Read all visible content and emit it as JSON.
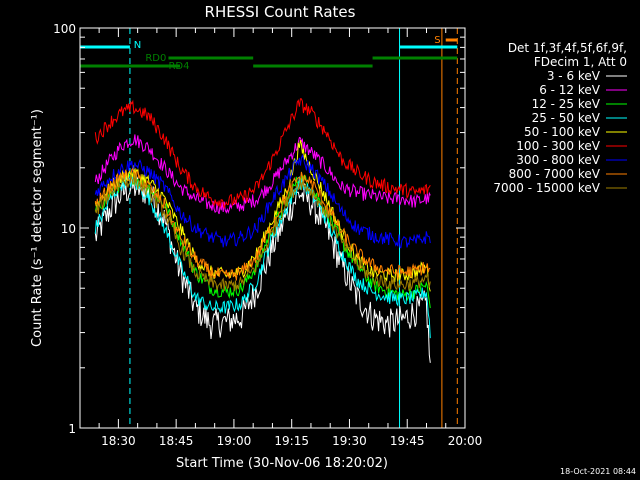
{
  "chart_data": {
    "type": "line",
    "title": "RHESSI Count Rates",
    "xlabel": "Start Time (30-Nov-06 18:20:02)",
    "ylabel": "Count Rate (s⁻¹ detector segment⁻¹)",
    "y_scale": "log",
    "ylim": [
      1,
      100
    ],
    "xlim": [
      "18:20:02",
      "20:00:00"
    ],
    "x_ticks": [
      "18:30",
      "18:45",
      "19:00",
      "19:15",
      "19:30",
      "19:45",
      "20:00"
    ],
    "y_ticks": [
      "1",
      "10",
      "100"
    ],
    "grid": false,
    "legend_header": [
      "Det 1f,3f,4f,5f,6f,9f,",
      "FDecim 1, Att 0"
    ],
    "legend_position": "right",
    "timestamp": "18-Oct-2021 08:44",
    "x": [
      "18:24",
      "18:28",
      "18:31",
      "18:34",
      "18:38",
      "18:42",
      "18:46",
      "18:50",
      "18:54",
      "18:58",
      "19:02",
      "19:06",
      "19:10",
      "19:14",
      "19:17",
      "19:20",
      "19:24",
      "19:28",
      "19:32",
      "19:36",
      "19:40",
      "19:44",
      "19:47",
      "19:50",
      "19:51"
    ],
    "series": [
      {
        "name": "3 - 6 keV",
        "color": "#ffffff",
        "values": [
          9,
          12.5,
          15,
          16,
          15,
          11,
          6,
          4,
          3.3,
          3.4,
          3.6,
          5,
          8,
          12,
          15,
          13.5,
          10,
          6.5,
          4.5,
          3.6,
          3.3,
          3.5,
          3.8,
          4.2,
          2
        ]
      },
      {
        "name": "6 - 12 keV",
        "color": "#ff00ff",
        "values": [
          17,
          22,
          26,
          28,
          25,
          20,
          16,
          14,
          13,
          12.5,
          13,
          14,
          17,
          22,
          27,
          24,
          20,
          16,
          15,
          14.5,
          14,
          14,
          13.5,
          14,
          14
        ]
      },
      {
        "name": "12 - 25 keV",
        "color": "#00ff00",
        "values": [
          12,
          15,
          17,
          18,
          16,
          13,
          9,
          6,
          5,
          4.8,
          5,
          6.5,
          10,
          14,
          18,
          16,
          12,
          8.5,
          6.5,
          5.2,
          4.8,
          4.6,
          4.8,
          5.2,
          4
        ]
      },
      {
        "name": "25 - 50 keV",
        "color": "#00ffff",
        "values": [
          10,
          14,
          17,
          17,
          14,
          10,
          6.5,
          4.5,
          4,
          4,
          4.2,
          5.5,
          9,
          13,
          17,
          15,
          11,
          7.5,
          5.5,
          4.8,
          4.5,
          4.4,
          4.5,
          4.8,
          3
        ]
      },
      {
        "name": "50 - 100 keV",
        "color": "#ffff00",
        "values": [
          13,
          16,
          18,
          19,
          17,
          14,
          10,
          7,
          6,
          5.8,
          6,
          7.5,
          11,
          16,
          26,
          20,
          14,
          9.5,
          7,
          6,
          5.8,
          5.8,
          6,
          6.4,
          5
        ]
      },
      {
        "name": "100 - 300 keV",
        "color": "#ff0000",
        "values": [
          28,
          34,
          38,
          40,
          36,
          28,
          20,
          16,
          14,
          13.5,
          14,
          16,
          22,
          32,
          42,
          38,
          30,
          22,
          19,
          17,
          16,
          15.5,
          15,
          15.5,
          16
        ]
      },
      {
        "name": "300 - 800 keV",
        "color": "#0000ff",
        "values": [
          15,
          18,
          20,
          21,
          19,
          16,
          12,
          10,
          9,
          8.5,
          9,
          10,
          14,
          18,
          22,
          20,
          16,
          12,
          10,
          9.2,
          8.8,
          8.5,
          8.5,
          9,
          9
        ]
      },
      {
        "name": "800 - 7000 keV",
        "color": "#ff8000",
        "values": [
          13,
          16,
          18,
          18.5,
          16,
          13,
          9,
          7,
          6,
          5.7,
          6,
          7.2,
          10.5,
          15,
          18,
          17,
          13,
          9.5,
          7.5,
          6.5,
          6.1,
          6,
          6.1,
          6.4,
          6
        ]
      },
      {
        "name": "7000 - 15000 keV",
        "color": "#a08000",
        "values": [
          12,
          15,
          17,
          17.5,
          15,
          12,
          8,
          6,
          5.3,
          5.1,
          5.3,
          6.5,
          9.5,
          14,
          17,
          15.5,
          12,
          8.5,
          6.6,
          5.6,
          5.3,
          5.2,
          5.3,
          5.6,
          5
        ]
      }
    ],
    "annotations": {
      "vlines": [
        {
          "time": "18:20:02",
          "color": "#00ffff",
          "style": "solid"
        },
        {
          "time": "18:33",
          "color": "#00ffff",
          "style": "dashed"
        },
        {
          "time": "19:43",
          "color": "#00ffff",
          "style": "solid"
        },
        {
          "time": "19:54",
          "color": "#ff8000",
          "style": "solid"
        },
        {
          "time": "19:58",
          "color": "#ff8000",
          "style": "dashed"
        }
      ],
      "hbars": [
        {
          "color": "#00ffff",
          "y": "top",
          "x0": "18:20:02",
          "x1": "18:33",
          "label": "N",
          "label_at": "18:34"
        },
        {
          "color": "#00ffff",
          "y": "top",
          "x0": "19:43",
          "x1": "19:58",
          "label": "",
          "label_at": ""
        },
        {
          "color": "#ff8000",
          "y": "top-s",
          "x0": "19:55",
          "x1": "19:58",
          "label": "S",
          "label_at": "19:52"
        },
        {
          "color": "#008000",
          "y": "rd0",
          "x0": "18:43",
          "x1": "19:05",
          "label": "RD0",
          "label_at": "18:37"
        },
        {
          "color": "#008000",
          "y": "rd0",
          "x0": "19:36",
          "x1": "19:58",
          "label": "",
          "label_at": ""
        },
        {
          "color": "#008000",
          "y": "rd4",
          "x0": "18:20:02",
          "x1": "18:43",
          "label": "",
          "label_at": ""
        },
        {
          "color": "#008000",
          "y": "rd4",
          "x0": "19:05",
          "x1": "19:36",
          "label": "",
          "label_at": ""
        },
        {
          "color": "#008000",
          "y": "rd4",
          "x0": "18:43",
          "x1": "18:46",
          "label": "RD4",
          "label_at": "18:43"
        }
      ]
    }
  }
}
